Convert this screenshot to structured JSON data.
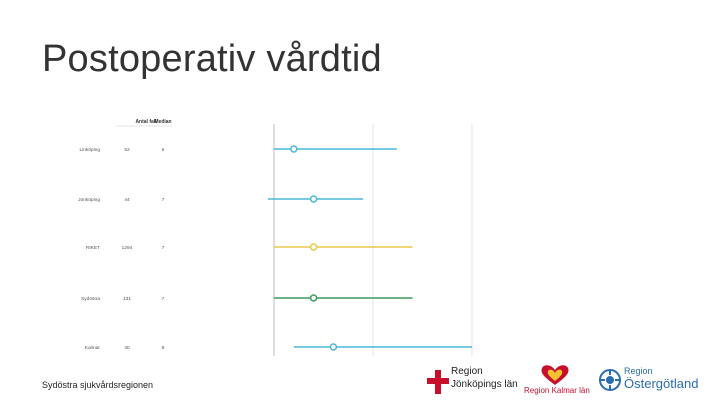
{
  "slide": {
    "title": "Postoperativ vårdtid",
    "footer": "Sydöstra sjukvårdsregionen"
  },
  "table": {
    "headers": [
      "Antal fall",
      "Median"
    ]
  },
  "chart_data": {
    "type": "forest",
    "categories": [
      "Linköping",
      "Jönköping",
      "RIKET",
      "Sydöstra",
      "Kalmar"
    ],
    "n": [
      "52",
      "44",
      "1294",
      "131",
      "30"
    ],
    "median_labels": [
      "6",
      "7",
      "7",
      "7",
      "8"
    ],
    "median": [
      6,
      7,
      7,
      7,
      8
    ],
    "low": [
      5,
      4.7,
      5,
      5,
      6
    ],
    "high": [
      11.2,
      9.5,
      12,
      12,
      15
    ],
    "colors": [
      "#4bb8d8",
      "#4bb8d8",
      "#e8c84a",
      "#3a9a5c",
      "#4bb8d8"
    ],
    "xlim": [
      5,
      15
    ]
  },
  "logos": {
    "jonkoping": {
      "line1": "Region",
      "line2": "Jönköpings län",
      "color": "#c8102e"
    },
    "kalmar": {
      "text": "Region Kalmar län",
      "color": "#c8102e"
    },
    "ostergotland": {
      "line1": "Region",
      "line2": "Östergötland",
      "color": "#2a6db0"
    }
  }
}
